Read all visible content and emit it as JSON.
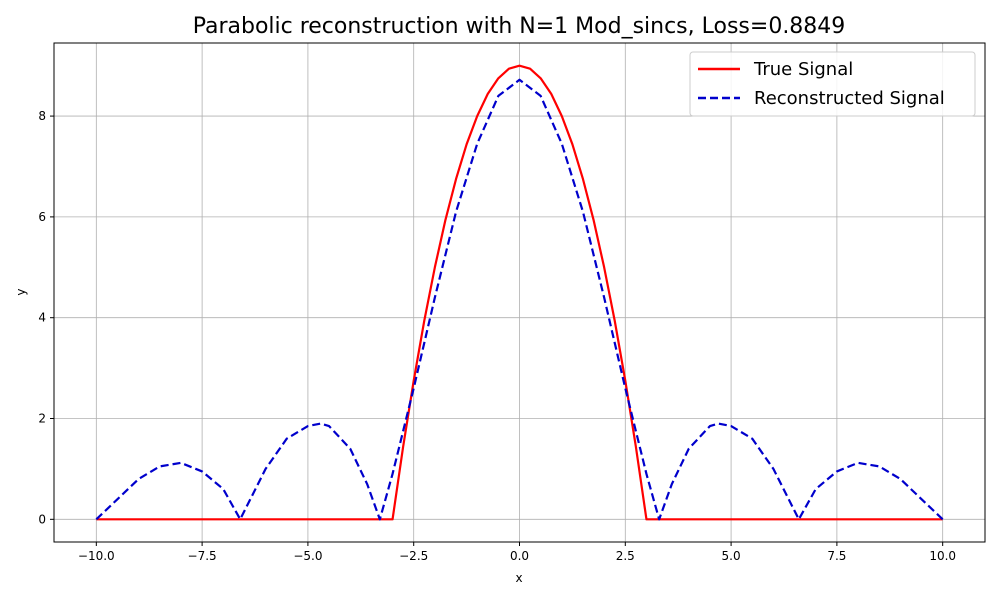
{
  "chart_data": {
    "type": "line",
    "title": "Parabolic reconstruction with N=1 Mod_sincs, Loss=0.8849",
    "xlabel": "x",
    "ylabel": "y",
    "xlim": [
      -11,
      11
    ],
    "ylim": [
      -0.45,
      9.45
    ],
    "grid": true,
    "legend_position": "top-right",
    "x_ticks": [
      -10.0,
      -7.5,
      -5.0,
      -2.5,
      0.0,
      2.5,
      5.0,
      7.5,
      10.0
    ],
    "x_tick_labels": [
      "−10.0",
      "−7.5",
      "−5.0",
      "−2.5",
      "0.0",
      "2.5",
      "5.0",
      "7.5",
      "10.0"
    ],
    "y_ticks": [
      0,
      2,
      4,
      6,
      8
    ],
    "y_tick_labels": [
      "0",
      "2",
      "4",
      "6",
      "8"
    ],
    "series": [
      {
        "name": "True Signal",
        "color": "#ff0000",
        "style": "solid",
        "x": [
          -10,
          -3.0,
          -2.75,
          -2.5,
          -2.25,
          -2.0,
          -1.75,
          -1.5,
          -1.25,
          -1.0,
          -0.75,
          -0.5,
          -0.25,
          0.0,
          0.25,
          0.5,
          0.75,
          1.0,
          1.25,
          1.5,
          1.75,
          2.0,
          2.25,
          2.5,
          2.75,
          3.0,
          10
        ],
        "y": [
          0,
          0,
          1.44,
          2.75,
          3.94,
          5.0,
          5.94,
          6.75,
          7.44,
          8.0,
          8.44,
          8.75,
          8.94,
          9.0,
          8.94,
          8.75,
          8.44,
          8.0,
          7.44,
          6.75,
          5.94,
          5.0,
          3.94,
          2.75,
          1.44,
          0,
          0
        ]
      },
      {
        "name": "Reconstructed Signal",
        "color": "#0000cc",
        "style": "dashed",
        "x": [
          -10.0,
          -9.5,
          -9.0,
          -8.5,
          -8.0,
          -7.5,
          -7.0,
          -6.6,
          -6.0,
          -5.5,
          -5.0,
          -4.7,
          -4.5,
          -4.0,
          -3.6,
          -3.3,
          -3.0,
          -2.5,
          -2.0,
          -1.5,
          -1.0,
          -0.5,
          0.0,
          0.5,
          1.0,
          1.5,
          2.0,
          2.5,
          3.0,
          3.3,
          3.6,
          4.0,
          4.5,
          4.7,
          5.0,
          5.5,
          6.0,
          6.6,
          7.0,
          7.5,
          8.0,
          8.5,
          9.0,
          9.5,
          10.0
        ],
        "y": [
          0.0,
          0.4,
          0.8,
          1.05,
          1.12,
          0.95,
          0.6,
          0.0,
          1.0,
          1.6,
          1.85,
          1.9,
          1.85,
          1.4,
          0.7,
          0.0,
          0.9,
          2.6,
          4.4,
          6.1,
          7.45,
          8.4,
          8.72,
          8.4,
          7.45,
          6.1,
          4.4,
          2.6,
          0.9,
          0.0,
          0.7,
          1.4,
          1.85,
          1.9,
          1.85,
          1.6,
          1.0,
          0.0,
          0.6,
          0.95,
          1.12,
          1.05,
          0.8,
          0.4,
          0.0
        ]
      }
    ]
  }
}
